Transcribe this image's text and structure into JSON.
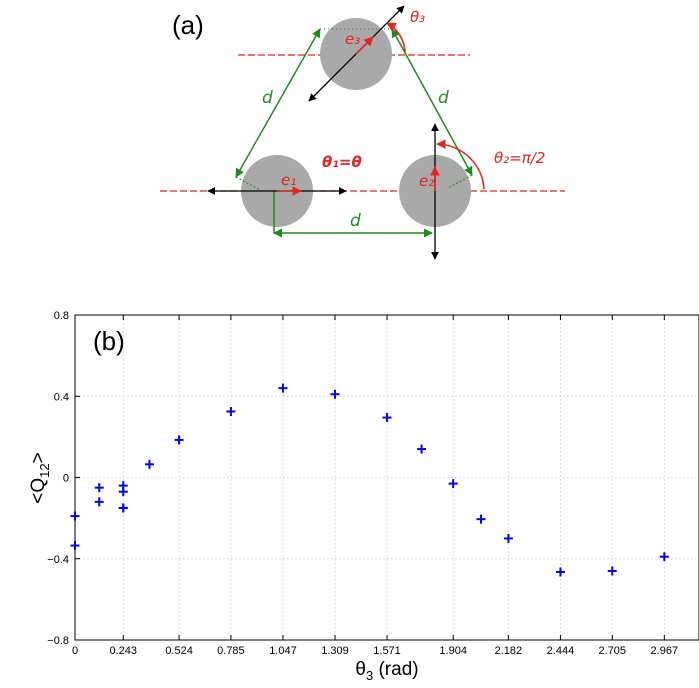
{
  "diagram": {
    "panel_label": "(a)",
    "labels": {
      "d_left": "d",
      "d_right": "d",
      "d_bottom": "d",
      "theta1": "θ₁=θ",
      "theta2": "θ₂=π/2",
      "theta3": "θ₃",
      "e1": "e₁",
      "e2": "e₂",
      "e3": "e₃"
    },
    "colors": {
      "particle": "#a9a9a9",
      "triangle": "#1f8a1f",
      "annotation": "#e3261e",
      "director": "#000000"
    }
  },
  "chart_data": {
    "type": "scatter",
    "panel_label": "(b)",
    "xlabel": "θ3 (rad)",
    "ylabel": "<Q12>",
    "xlim": [
      0,
      3.14159
    ],
    "ylim": [
      -0.8,
      0.8
    ],
    "grid": true,
    "xticks": [
      0,
      0.243,
      0.524,
      0.785,
      1.047,
      1.309,
      1.571,
      1.904,
      2.182,
      2.444,
      2.705,
      2.967
    ],
    "xtick_labels": [
      "0",
      "0.243",
      "0.524",
      "0.785",
      "1.047",
      "1.309",
      "1.571",
      "1.904",
      "2.182",
      "2.444",
      "2.705",
      "2.967"
    ],
    "yticks": [
      -0.8,
      -0.4,
      0,
      0.4,
      0.8
    ],
    "ytick_labels": [
      "−0.8",
      "−0.4",
      "0",
      "0.4",
      "0.8"
    ],
    "marker": "+",
    "color": "#0000ff",
    "x": [
      0,
      0,
      0.122,
      0.122,
      0.243,
      0.243,
      0.243,
      0.243,
      0.375,
      0.524,
      0.785,
      1.047,
      1.309,
      1.571,
      1.745,
      1.904,
      2.044,
      2.182,
      2.444,
      2.705,
      2.967
    ],
    "y": [
      -0.335,
      -0.19,
      -0.05,
      -0.12,
      -0.04,
      -0.07,
      -0.15,
      -0.15,
      0.065,
      0.185,
      0.325,
      0.44,
      0.41,
      0.295,
      0.14,
      -0.03,
      -0.205,
      -0.3,
      -0.465,
      -0.46,
      -0.39
    ]
  }
}
